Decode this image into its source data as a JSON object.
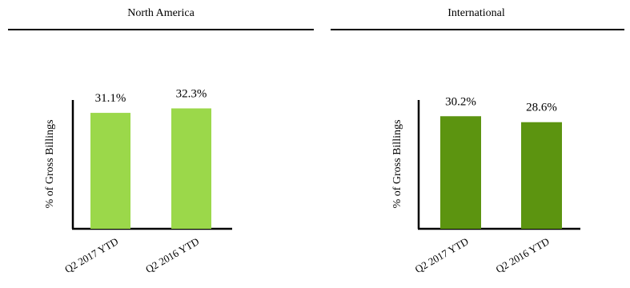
{
  "chart_data": [
    {
      "type": "bar",
      "title": "North America",
      "ylabel": "% of Gross Billings",
      "categories": [
        "Q2 2017 YTD",
        "Q2 2016 YTD"
      ],
      "values": [
        31.1,
        32.3
      ],
      "value_labels": [
        "31.1%",
        "32.3%"
      ],
      "color": "#9bd84a",
      "ylim": [
        0,
        40
      ],
      "grid": false,
      "legend": "none"
    },
    {
      "type": "bar",
      "title": "International",
      "ylabel": "% of Gross Billings",
      "categories": [
        "Q2 2017 YTD",
        "Q2 2016 YTD"
      ],
      "values": [
        30.2,
        28.6
      ],
      "value_labels": [
        "30.2%",
        "28.6%"
      ],
      "color": "#5c9410",
      "ylim": [
        0,
        40
      ],
      "grid": false,
      "legend": "none"
    }
  ]
}
